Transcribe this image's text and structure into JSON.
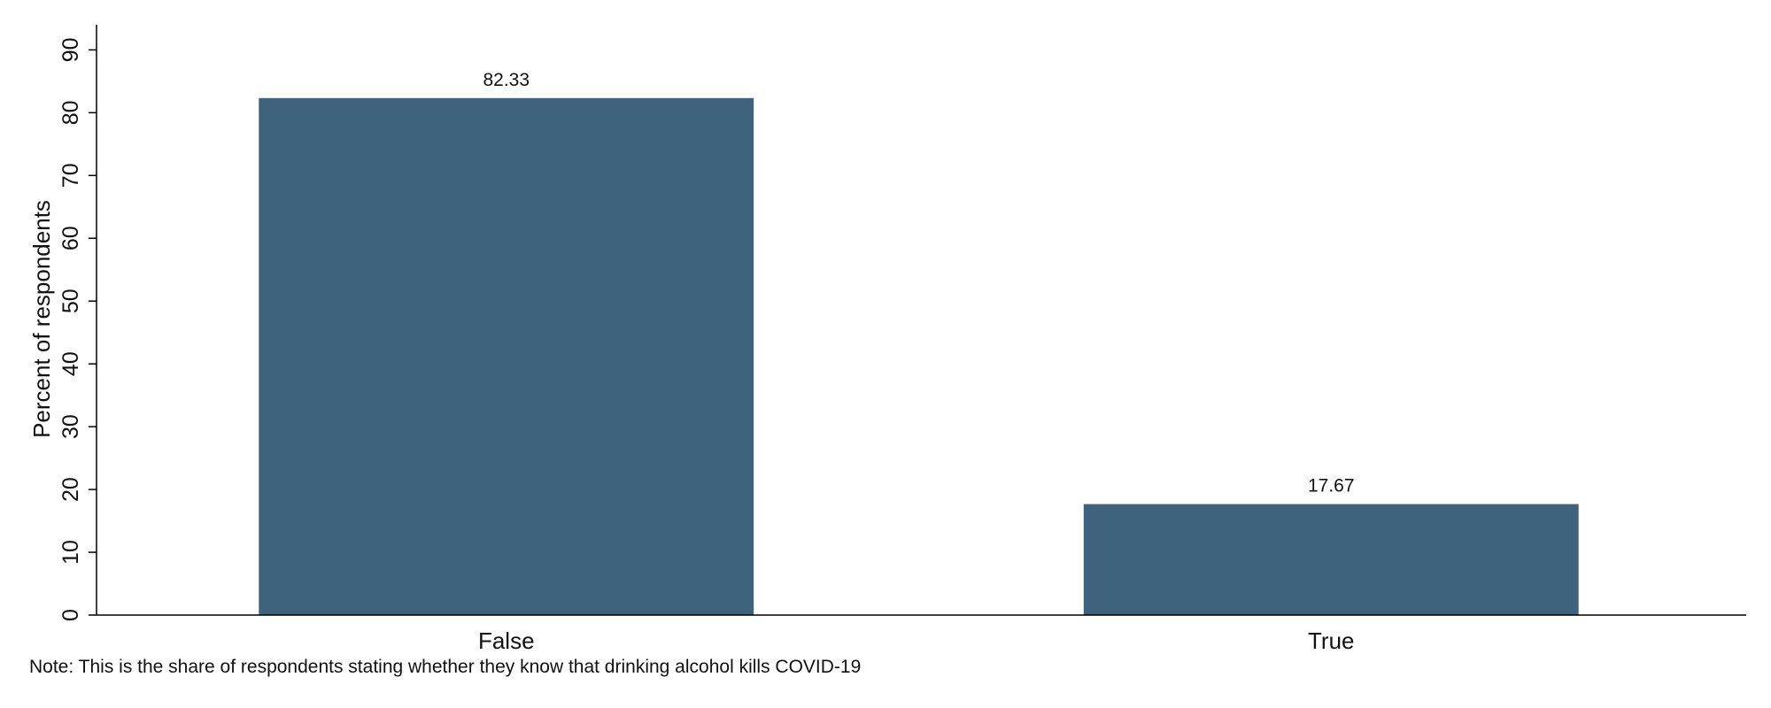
{
  "chart_data": {
    "type": "bar",
    "categories": [
      "False",
      "True"
    ],
    "values": [
      82.33,
      17.67
    ],
    "value_labels": [
      "82.33",
      "17.67"
    ],
    "title": "",
    "xlabel": "",
    "ylabel": "Percent of respondents",
    "ylim": [
      0,
      94
    ],
    "yticks": [
      0,
      10,
      20,
      30,
      40,
      50,
      60,
      70,
      80,
      90
    ],
    "grid": false,
    "legend": "none",
    "bar_color": "#3f637c",
    "note": "Note: This is the share of respondents stating whether they know that drinking alcohol kills COVID-19"
  }
}
